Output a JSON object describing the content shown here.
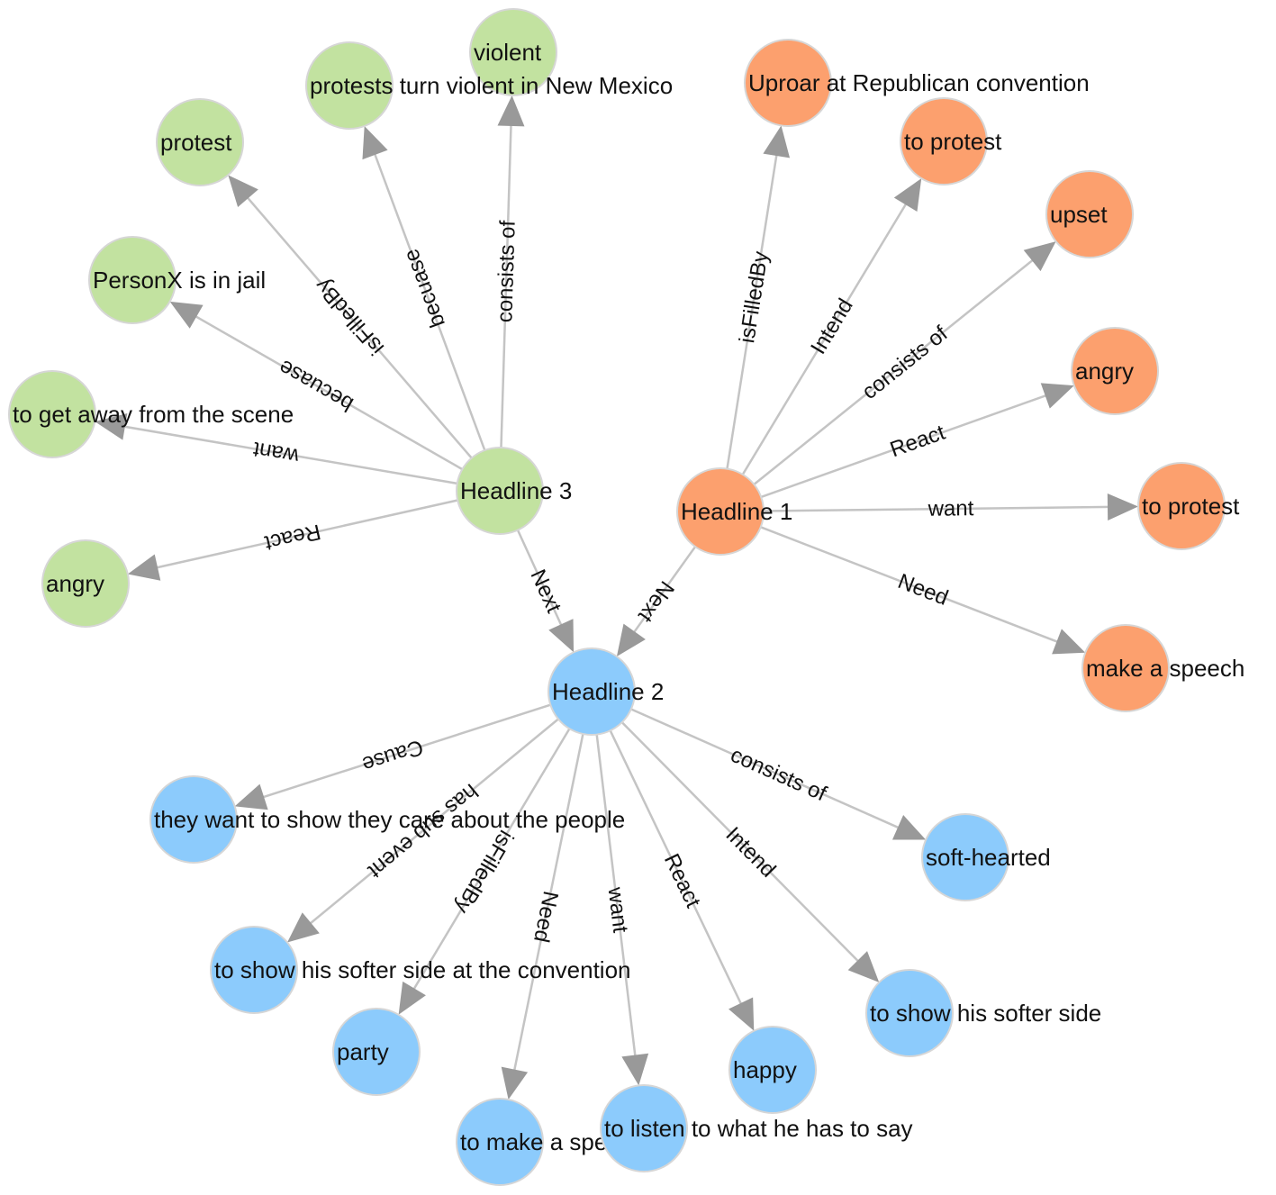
{
  "colors": {
    "green": "#c2e2a0",
    "orange": "#fca06e",
    "blue": "#8ccbfc",
    "edge": "#c4c4c4",
    "arrow": "#999999",
    "node_border": "#d6d6d6"
  },
  "nodes": [
    {
      "id": "h3",
      "label": "Headline 3",
      "group": "green"
    },
    {
      "id": "g1",
      "label": "violent",
      "group": "green"
    },
    {
      "id": "g2",
      "label": "protests turn violent in New Mexico",
      "group": "green"
    },
    {
      "id": "g3",
      "label": "protest",
      "group": "green"
    },
    {
      "id": "g4",
      "label": "PersonX is in jail",
      "group": "green"
    },
    {
      "id": "g5",
      "label": "to get away from the scene",
      "group": "green"
    },
    {
      "id": "g6",
      "label": "angry",
      "group": "green"
    },
    {
      "id": "h1",
      "label": "Headline 1",
      "group": "orange"
    },
    {
      "id": "o1",
      "label": "Uproar at Republican convention",
      "group": "orange"
    },
    {
      "id": "o2",
      "label": "to protest",
      "group": "orange"
    },
    {
      "id": "o3",
      "label": "upset",
      "group": "orange"
    },
    {
      "id": "o4",
      "label": "angry",
      "group": "orange"
    },
    {
      "id": "o5",
      "label": "to protest",
      "group": "orange"
    },
    {
      "id": "o6",
      "label": "make a speech",
      "group": "orange"
    },
    {
      "id": "h2",
      "label": "Headline 2",
      "group": "blue"
    },
    {
      "id": "b1",
      "label": "they want to show they care about the people",
      "group": "blue"
    },
    {
      "id": "b2",
      "label": "soft-hearted",
      "group": "blue"
    },
    {
      "id": "b3",
      "label": "to show his softer side at the convention",
      "group": "blue"
    },
    {
      "id": "b4",
      "label": "to show his softer side",
      "group": "blue"
    },
    {
      "id": "b5",
      "label": "party",
      "group": "blue"
    },
    {
      "id": "b6",
      "label": "happy",
      "group": "blue"
    },
    {
      "id": "b7",
      "label": "to make a speech",
      "group": "blue"
    },
    {
      "id": "b8",
      "label": "to listen to what he has to say",
      "group": "blue"
    }
  ],
  "edges": [
    {
      "from": "h3",
      "to": "g1",
      "label": "consists of"
    },
    {
      "from": "h3",
      "to": "g2",
      "label": "becuase"
    },
    {
      "from": "h3",
      "to": "g3",
      "label": "isFilledBy"
    },
    {
      "from": "h3",
      "to": "g4",
      "label": "becuase"
    },
    {
      "from": "h3",
      "to": "g5",
      "label": "want"
    },
    {
      "from": "h3",
      "to": "g6",
      "label": "React"
    },
    {
      "from": "h3",
      "to": "h2",
      "label": "Next"
    },
    {
      "from": "h1",
      "to": "h2",
      "label": "Next"
    },
    {
      "from": "h1",
      "to": "o1",
      "label": "isFilledBy"
    },
    {
      "from": "h1",
      "to": "o2",
      "label": "Intend"
    },
    {
      "from": "h1",
      "to": "o3",
      "label": "consists of"
    },
    {
      "from": "h1",
      "to": "o4",
      "label": "React"
    },
    {
      "from": "h1",
      "to": "o5",
      "label": "want"
    },
    {
      "from": "h1",
      "to": "o6",
      "label": "Need"
    },
    {
      "from": "h2",
      "to": "b1",
      "label": "Cause"
    },
    {
      "from": "h2",
      "to": "b3",
      "label": "has sub event"
    },
    {
      "from": "h2",
      "to": "b5",
      "label": "isFilledBy"
    },
    {
      "from": "h2",
      "to": "b7",
      "label": "Need"
    },
    {
      "from": "h2",
      "to": "b8",
      "label": "want"
    },
    {
      "from": "h2",
      "to": "b6",
      "label": "React"
    },
    {
      "from": "h2",
      "to": "b4",
      "label": "Intend"
    },
    {
      "from": "h2",
      "to": "b2",
      "label": "consists of"
    }
  ]
}
